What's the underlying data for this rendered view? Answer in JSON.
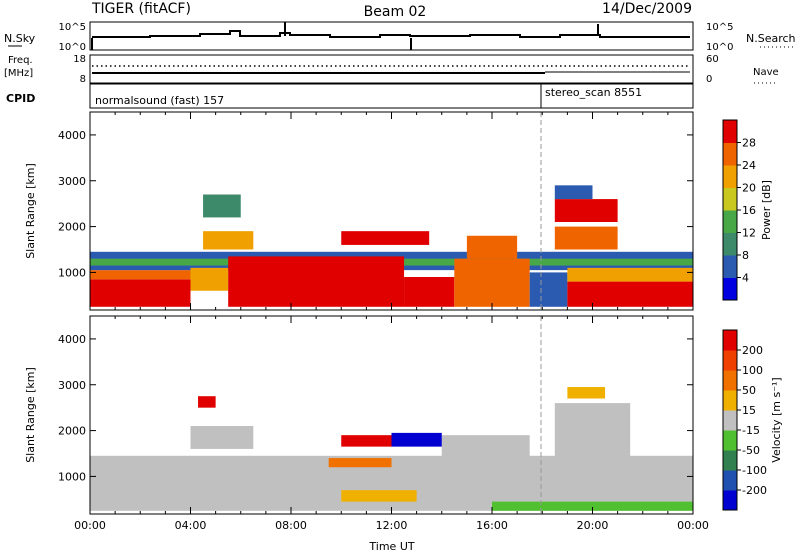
{
  "header": {
    "title": "TIGER (fitACF)",
    "beam": "Beam 02",
    "date": "14/Dec/2009"
  },
  "top_panels": {
    "nsky_label": "N.Sky",
    "nsky_ticks": [
      "10^5",
      "10^0"
    ],
    "nsearch_label": "N.Search",
    "nsearch_ticks": [
      "10^5",
      "10^0"
    ],
    "freq_label_1": "Freq.",
    "freq_label_2": "[MHz]",
    "freq_ticks": [
      "18",
      "8"
    ],
    "nave_label": "Nave",
    "nave_ticks": [
      "60",
      "0"
    ],
    "cpid_label": "CPID",
    "cpid_segments": [
      {
        "label": "normalsound (fast) 157",
        "start_h": 0,
        "end_h": 18
      },
      {
        "label": "stereo_scan 8551",
        "start_h": 18,
        "end_h": 24
      }
    ]
  },
  "chart_data": [
    {
      "type": "heatmap",
      "name": "power-panel",
      "xlabel": "",
      "ylabel": "Slant Range [km]",
      "xlim": [
        0,
        24
      ],
      "ylim": [
        180,
        4500
      ],
      "yticks": [
        "1000",
        "2000",
        "3000",
        "4000"
      ],
      "ytick_values": [
        1000,
        2000,
        3000,
        4000
      ],
      "colorbar": {
        "label": "Power [dB]",
        "ticks": [
          "4",
          "8",
          "12",
          "16",
          "20",
          "24",
          "28"
        ],
        "colors": [
          "#0000e0",
          "#2b5bb0",
          "#3c8a6a",
          "#48a848",
          "#c8c81e",
          "#f0a000",
          "#f06400",
          "#e00000"
        ],
        "range": [
          0,
          32
        ]
      },
      "regions": [
        {
          "t0": 0.0,
          "t1": 4.0,
          "r0": 250,
          "r1": 850,
          "color": "#e00000"
        },
        {
          "t0": 0.0,
          "t1": 5.0,
          "r0": 850,
          "r1": 1050,
          "color": "#f06400"
        },
        {
          "t0": 0.0,
          "t1": 24.0,
          "r0": 1050,
          "r1": 1450,
          "color": "#2b5bb0"
        },
        {
          "t0": 0.0,
          "t1": 24.0,
          "r0": 1150,
          "r1": 1300,
          "color": "#48a848"
        },
        {
          "t0": 4.0,
          "t1": 5.5,
          "r0": 600,
          "r1": 1100,
          "color": "#f0a000"
        },
        {
          "t0": 5.5,
          "t1": 12.5,
          "r0": 250,
          "r1": 1350,
          "color": "#e00000"
        },
        {
          "t0": 12.5,
          "t1": 14.5,
          "r0": 250,
          "r1": 900,
          "color": "#e00000"
        },
        {
          "t0": 14.5,
          "t1": 17.5,
          "r0": 250,
          "r1": 1300,
          "color": "#f06400"
        },
        {
          "t0": 15.0,
          "t1": 17.0,
          "r0": 1300,
          "r1": 1800,
          "color": "#f06400"
        },
        {
          "t0": 17.5,
          "t1": 19.0,
          "r0": 250,
          "r1": 1000,
          "color": "#2b5bb0"
        },
        {
          "t0": 19.0,
          "t1": 24.0,
          "r0": 250,
          "r1": 800,
          "color": "#e00000"
        },
        {
          "t0": 19.0,
          "t1": 24.0,
          "r0": 800,
          "r1": 1100,
          "color": "#f0a000"
        },
        {
          "t0": 10.0,
          "t1": 13.5,
          "r0": 1600,
          "r1": 1900,
          "color": "#e00000"
        },
        {
          "t0": 4.5,
          "t1": 6.5,
          "r0": 1500,
          "r1": 1900,
          "color": "#f0a000"
        },
        {
          "t0": 4.5,
          "t1": 6.0,
          "r0": 2200,
          "r1": 2700,
          "color": "#3c8a6a"
        },
        {
          "t0": 18.5,
          "t1": 21.0,
          "r0": 1500,
          "r1": 2000,
          "color": "#f06400"
        },
        {
          "t0": 18.5,
          "t1": 21.0,
          "r0": 2100,
          "r1": 2600,
          "color": "#e00000"
        },
        {
          "t0": 18.5,
          "t1": 20.0,
          "r0": 2600,
          "r1": 2900,
          "color": "#2b5bb0"
        }
      ]
    },
    {
      "type": "heatmap",
      "name": "velocity-panel",
      "xlabel": "Time UT",
      "ylabel": "Slant Range [km]",
      "xlim": [
        0,
        24
      ],
      "ylim": [
        180,
        4500
      ],
      "yticks": [
        "1000",
        "2000",
        "3000",
        "4000"
      ],
      "ytick_values": [
        1000,
        2000,
        3000,
        4000
      ],
      "xticks": [
        "00:00",
        "04:00",
        "08:00",
        "12:00",
        "16:00",
        "20:00",
        "00:00"
      ],
      "xtick_values": [
        0,
        4,
        8,
        12,
        16,
        20,
        24
      ],
      "colorbar": {
        "label": "Velocity [m s⁻¹]",
        "ticks": [
          "200",
          "100",
          "50",
          "15",
          "-15",
          "-50",
          "-100",
          "-200"
        ],
        "colors": [
          "#0000d0",
          "#2050b0",
          "#308050",
          "#50c030",
          "#c0c0c0",
          "#f0b000",
          "#f07000",
          "#f04000",
          "#e00000"
        ],
        "range": [
          -200,
          200
        ]
      },
      "regions": [
        {
          "t0": 0.0,
          "t1": 24.0,
          "r0": 250,
          "r1": 1450,
          "color": "#c0c0c0"
        },
        {
          "t0": 4.0,
          "t1": 6.5,
          "r0": 1600,
          "r1": 2100,
          "color": "#c0c0c0"
        },
        {
          "t0": 14.0,
          "t1": 17.5,
          "r0": 1300,
          "r1": 1900,
          "color": "#c0c0c0"
        },
        {
          "t0": 18.5,
          "t1": 21.5,
          "r0": 1400,
          "r1": 2600,
          "color": "#c0c0c0"
        },
        {
          "t0": 10.0,
          "t1": 12.0,
          "r0": 1650,
          "r1": 1900,
          "color": "#e00000"
        },
        {
          "t0": 12.0,
          "t1": 14.0,
          "r0": 1650,
          "r1": 1950,
          "color": "#0000d0"
        },
        {
          "t0": 9.5,
          "t1": 12.0,
          "r0": 1200,
          "r1": 1400,
          "color": "#f07000"
        },
        {
          "t0": 10.0,
          "t1": 13.0,
          "r0": 450,
          "r1": 700,
          "color": "#f0b000"
        },
        {
          "t0": 16.0,
          "t1": 24.0,
          "r0": 250,
          "r1": 450,
          "color": "#50c030"
        },
        {
          "t0": 4.3,
          "t1": 5.0,
          "r0": 2500,
          "r1": 2750,
          "color": "#e00000"
        },
        {
          "t0": 19.0,
          "t1": 20.5,
          "r0": 2700,
          "r1": 2950,
          "color": "#f0b000"
        }
      ]
    }
  ]
}
